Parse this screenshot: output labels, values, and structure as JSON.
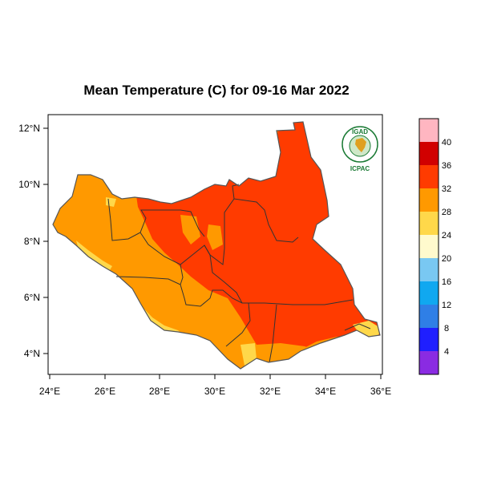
{
  "title": "Mean Temperature (C) for 09-16 Mar 2022",
  "logo": {
    "top_text": "IGAD",
    "bottom_text": "ICPAC",
    "color": "#1a7a34"
  },
  "x_axis": {
    "ticks": [
      "24°E",
      "26°E",
      "28°E",
      "30°E",
      "32°E",
      "34°E",
      "36°E"
    ]
  },
  "y_axis": {
    "ticks": [
      "4°N",
      "6°N",
      "8°N",
      "10°N",
      "12°N"
    ]
  },
  "colorbar": {
    "colors": [
      "#8a2be2",
      "#1f1fff",
      "#2f7fe6",
      "#10a8f0",
      "#79c8f2",
      "#fffacd",
      "#ffd84a",
      "#ff9900",
      "#ff3b00",
      "#d10000",
      "#ffb6c1"
    ],
    "labels": [
      "4",
      "8",
      "12",
      "16",
      "20",
      "24",
      "28",
      "32",
      "36",
      "40"
    ]
  },
  "map_colors": {
    "t26_28": "#ffd84a",
    "t28_32": "#ff9900",
    "t32_36": "#ff3b00",
    "border": "#333333",
    "outline": "#555555"
  }
}
